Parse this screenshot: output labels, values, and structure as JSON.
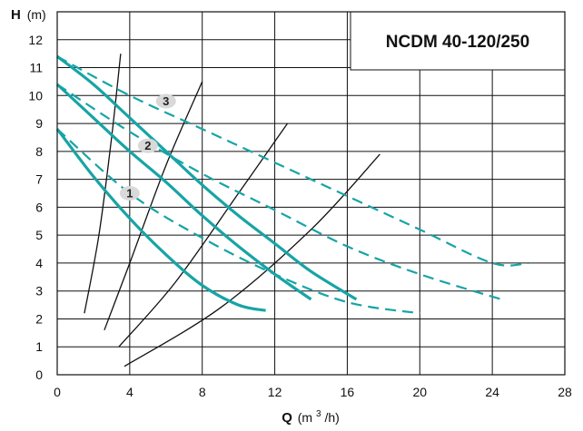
{
  "chart_data": {
    "type": "line",
    "title": "NCDM 40-120/250",
    "ylabel": {
      "symbol": "H",
      "unit": "(m)"
    },
    "xlabel": {
      "symbol": "Q",
      "unit_open": "(m",
      "unit_sup": "3",
      "unit_close": "/h)"
    },
    "xlim": [
      0,
      28
    ],
    "ylim": [
      0,
      13
    ],
    "xticks": [
      0,
      4,
      8,
      12,
      16,
      20,
      24,
      28
    ],
    "yticks": [
      0,
      1,
      2,
      3,
      4,
      5,
      6,
      7,
      8,
      9,
      10,
      11,
      12
    ],
    "grid": true,
    "colors": {
      "curve": "#17a4a6",
      "iso": "#111111",
      "marker_fill": "#d9d9d9"
    },
    "series": [
      {
        "label": "1",
        "style": "solid",
        "x": [
          0,
          2,
          4,
          6,
          8,
          10,
          11.5
        ],
        "y": [
          8.8,
          7.1,
          5.6,
          4.3,
          3.2,
          2.5,
          2.3
        ]
      },
      {
        "label": "1",
        "style": "dashed",
        "x": [
          0,
          4,
          8,
          12,
          16,
          20
        ],
        "y": [
          8.8,
          6.5,
          4.9,
          3.6,
          2.6,
          2.2
        ]
      },
      {
        "label": "2",
        "style": "solid",
        "x": [
          0,
          2,
          4,
          6,
          8,
          10,
          12,
          14
        ],
        "y": [
          10.4,
          9.2,
          8.0,
          6.9,
          5.7,
          4.6,
          3.6,
          2.7
        ]
      },
      {
        "label": "2",
        "style": "dashed",
        "x": [
          0,
          4,
          8,
          12,
          16,
          20,
          24.5
        ],
        "y": [
          10.4,
          8.7,
          7.2,
          5.9,
          4.6,
          3.6,
          2.7
        ]
      },
      {
        "label": "3",
        "style": "solid",
        "x": [
          0,
          2,
          4,
          6,
          8,
          10,
          12,
          14,
          16.5
        ],
        "y": [
          11.4,
          10.4,
          9.2,
          8.0,
          6.8,
          5.7,
          4.7,
          3.7,
          2.7
        ]
      },
      {
        "label": "3",
        "style": "dashed",
        "x": [
          0,
          4,
          8,
          12,
          16,
          20,
          24,
          26
        ],
        "y": [
          11.4,
          10.0,
          8.8,
          7.6,
          6.4,
          5.2,
          4.0,
          4.0
        ]
      }
    ],
    "efficiency_curves": [
      {
        "x": [
          1.5,
          2.3,
          3.0,
          3.5
        ],
        "y": [
          2.2,
          5.0,
          8.5,
          11.5
        ]
      },
      {
        "x": [
          2.6,
          4.0,
          6.0,
          8.0
        ],
        "y": [
          1.6,
          4.0,
          7.5,
          10.5
        ]
      },
      {
        "x": [
          3.4,
          6.5,
          10.0,
          12.7
        ],
        "y": [
          1.0,
          3.3,
          6.5,
          9.0
        ]
      },
      {
        "x": [
          3.7,
          9.0,
          14.0,
          17.8
        ],
        "y": [
          0.3,
          2.4,
          5.2,
          7.9
        ]
      }
    ],
    "curve_markers": [
      {
        "label": "1",
        "x": 4,
        "y": 6.5
      },
      {
        "label": "2",
        "x": 5,
        "y": 8.2
      },
      {
        "label": "3",
        "x": 6,
        "y": 9.8
      }
    ]
  }
}
